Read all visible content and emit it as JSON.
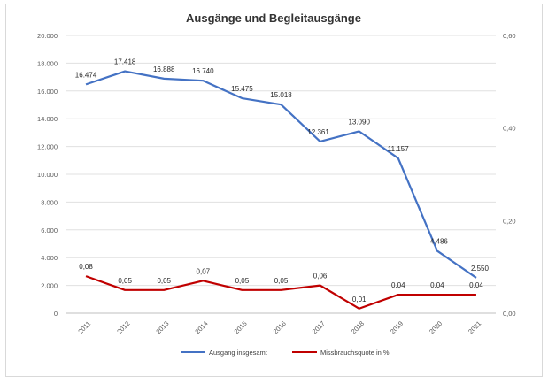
{
  "chart_data": {
    "type": "line",
    "title": "Ausgänge und Begleitausgänge",
    "categories": [
      "2011",
      "2012",
      "2013",
      "2014",
      "2015",
      "2016",
      "2017",
      "2018",
      "2019",
      "2020",
      "2021"
    ],
    "series": [
      {
        "name": "Ausgang insgesamt",
        "axis": "left",
        "color": "#4472c4",
        "values": [
          16474,
          17418,
          16888,
          16740,
          15475,
          15018,
          12361,
          13090,
          11157,
          4486,
          2550
        ],
        "labels": [
          "16.474",
          "17.418",
          "16.888",
          "16.740",
          "15.475",
          "15.018",
          "12.361",
          "13.090",
          "11.157",
          "4.486",
          "2.550"
        ]
      },
      {
        "name": "Missbrauchsquote in %",
        "axis": "right",
        "color": "#c00000",
        "values": [
          0.08,
          0.05,
          0.05,
          0.07,
          0.05,
          0.05,
          0.06,
          0.01,
          0.04,
          0.04,
          0.04
        ],
        "labels": [
          "0,08",
          "0,05",
          "0,05",
          "0,07",
          "0,05",
          "0,05",
          "0,06",
          "0,01",
          "0,04",
          "0,04",
          "0,04"
        ]
      }
    ],
    "y_left": {
      "min": 0,
      "max": 20000,
      "ticks": [
        0,
        2000,
        4000,
        6000,
        8000,
        10000,
        12000,
        14000,
        16000,
        18000,
        20000
      ],
      "tick_labels": [
        "0",
        "2.000",
        "4.000",
        "6.000",
        "8.000",
        "10.000",
        "12.000",
        "14.000",
        "16.000",
        "18.000",
        "20.000"
      ]
    },
    "y_right": {
      "min": 0,
      "max": 0.6,
      "ticks": [
        0,
        0.2,
        0.4,
        0.6
      ],
      "tick_labels": [
        "0,00",
        "0,20",
        "0,40",
        "0,60"
      ]
    },
    "grid": true,
    "legend_position": "bottom"
  }
}
